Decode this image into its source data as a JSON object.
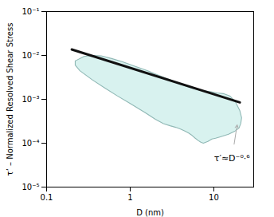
{
  "chart_data": {
    "type": "envelope_line",
    "xlabel": "D (nm)",
    "ylabel": "τ’ – Normalized Resolved Shear Stress",
    "log": true,
    "xlim": [
      0.1,
      30
    ],
    "ylim": [
      1e-05,
      0.1
    ],
    "xticks": [
      0.1,
      1,
      10
    ],
    "yticks": [
      {
        "value": 1e-05,
        "label": "10⁻⁵"
      },
      {
        "value": 0.0001,
        "label": "10⁻⁴"
      },
      {
        "value": 0.001,
        "label": "10⁻³"
      },
      {
        "value": 0.01,
        "label": "10⁻²"
      },
      {
        "value": 0.1,
        "label": "10⁻¹"
      }
    ],
    "grid": false,
    "background_color": "#ffffff",
    "series": [
      {
        "type": "area",
        "color": "#d8f2ef",
        "edge_color": "#90b8b5",
        "upper_x": [
          0.22,
          0.28,
          0.35,
          0.45,
          0.6,
          0.8,
          1.1,
          1.6,
          2.2,
          3.0,
          4.0,
          5.5,
          7.0,
          9.0,
          11.0,
          13.0,
          15.5,
          18.0,
          20.5,
          21.5,
          21.0
        ],
        "upper_y": [
          0.0075,
          0.0095,
          0.01,
          0.0098,
          0.0085,
          0.0072,
          0.0058,
          0.0045,
          0.0035,
          0.0028,
          0.0022,
          0.0018,
          0.0016,
          0.0015,
          0.0014,
          0.00135,
          0.0012,
          0.0009,
          0.00055,
          0.00038,
          0.00028
        ],
        "lower_x": [
          21.0,
          20.0,
          18.0,
          15.0,
          12.0,
          10.5,
          9.5,
          8.5,
          7.5,
          7.0,
          6.5,
          6.0,
          5.5,
          5.0,
          4.5,
          4.0,
          3.5,
          3.0,
          2.5,
          2.0,
          1.5,
          1.0,
          0.7,
          0.5,
          0.35,
          0.25,
          0.22
        ],
        "lower_y": [
          0.00028,
          0.00022,
          0.00019,
          0.00016,
          0.00014,
          0.00013,
          0.000125,
          0.00011,
          0.0001,
          0.000105,
          0.000115,
          0.00013,
          0.00015,
          0.00017,
          0.00019,
          0.00021,
          0.00023,
          0.00025,
          0.00028,
          0.00035,
          0.0005,
          0.0008,
          0.0012,
          0.0018,
          0.0028,
          0.0045,
          0.006
        ]
      },
      {
        "type": "line",
        "color": "#111111",
        "x": [
          0.2,
          20.5
        ],
        "values": [
          0.0136579,
          0.00084909
        ]
      }
    ],
    "annotations": [
      {
        "text": "τ′≈D⁻⁰·⁶",
        "x": 16.5,
        "y": 5.5e-05,
        "arrow_from": [
          17.5,
          9.5e-05
        ],
        "arrow_to": [
          19.0,
          0.00026
        ],
        "color": "#aaaaaa"
      }
    ]
  }
}
